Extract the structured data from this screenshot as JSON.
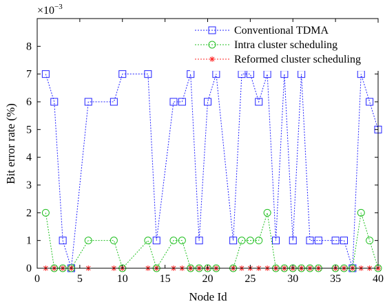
{
  "chart_data": {
    "type": "line",
    "xlabel": "Node Id",
    "ylabel": "Bit error rate (%)",
    "exponent_label": "×10",
    "exponent_power": "−3",
    "xlim": [
      0,
      40
    ],
    "ylim": [
      0,
      9
    ],
    "xticks": [
      0,
      5,
      10,
      15,
      20,
      25,
      30,
      35,
      40
    ],
    "yticks": [
      0,
      1,
      2,
      3,
      4,
      5,
      6,
      7,
      8
    ],
    "xtick_labels": [
      "0",
      "5",
      "10",
      "15",
      "20",
      "25",
      "30",
      "35",
      "40"
    ],
    "ytick_labels": [
      "0",
      "1",
      "2",
      "3",
      "4",
      "5",
      "6",
      "7",
      "8"
    ],
    "grid": false,
    "legend_position": "top-right",
    "series": [
      {
        "name": "Conventional TDMA",
        "color": "#2020ff",
        "marker": "square",
        "x": [
          1,
          2,
          3,
          4,
          6,
          9,
          10,
          13,
          14,
          16,
          17,
          18,
          19,
          20,
          21,
          23,
          24,
          25,
          26,
          27,
          28,
          29,
          30,
          31,
          32,
          33,
          35,
          36,
          37,
          38,
          39,
          40
        ],
        "y": [
          7,
          6,
          1,
          0,
          6,
          6,
          7,
          7,
          1,
          6,
          6,
          7,
          1,
          6,
          7,
          1,
          7,
          7,
          6,
          7,
          1,
          7,
          1,
          7,
          1,
          1,
          1,
          1,
          0,
          7,
          6,
          5
        ]
      },
      {
        "name": "Intra cluster scheduling",
        "color": "#1fbf1f",
        "marker": "circle",
        "x": [
          1,
          2,
          3,
          4,
          6,
          9,
          10,
          13,
          14,
          16,
          17,
          18,
          19,
          20,
          21,
          23,
          24,
          25,
          26,
          27,
          28,
          29,
          30,
          31,
          32,
          33,
          35,
          36,
          37,
          38,
          39,
          40
        ],
        "y": [
          2,
          0,
          0,
          0,
          1,
          1,
          0,
          1,
          0,
          1,
          1,
          0,
          0,
          0,
          0,
          0,
          1,
          1,
          1,
          2,
          0,
          0,
          0,
          0,
          0,
          0,
          0,
          0,
          0,
          2,
          1,
          0
        ]
      },
      {
        "name": "Reformed cluster scheduling",
        "color": "#ff2020",
        "marker": "star",
        "x": [
          1,
          2,
          3,
          4,
          6,
          9,
          10,
          13,
          14,
          16,
          17,
          18,
          19,
          20,
          21,
          23,
          24,
          25,
          26,
          27,
          28,
          29,
          30,
          31,
          32,
          33,
          35,
          36,
          37,
          38,
          39,
          40
        ],
        "y": [
          0,
          0,
          0,
          0,
          0,
          0,
          0,
          0,
          0,
          0,
          0,
          0,
          0,
          0,
          0,
          0,
          0,
          0,
          0,
          0,
          0,
          0,
          0,
          0,
          0,
          0,
          0,
          0,
          0,
          0,
          0,
          0
        ]
      }
    ]
  }
}
